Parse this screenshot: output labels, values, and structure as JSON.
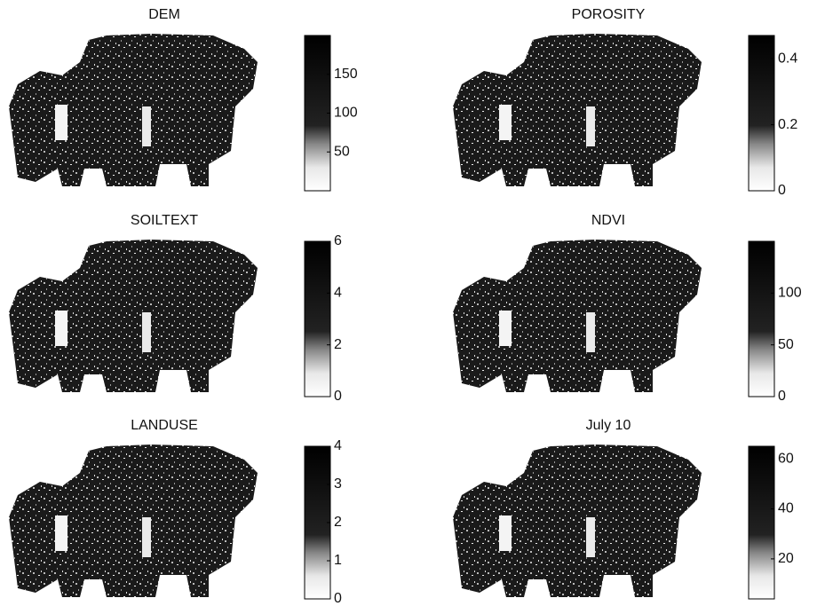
{
  "panels": [
    {
      "title": "DEM",
      "colorbar": {
        "clim": [
          0,
          200
        ],
        "ticks": [
          50,
          100,
          150
        ]
      }
    },
    {
      "title": "POROSITY",
      "colorbar": {
        "clim": [
          0,
          0.47
        ],
        "ticks": [
          0,
          0.2,
          0.4
        ]
      }
    },
    {
      "title": "SOILTEXT",
      "colorbar": {
        "clim": [
          0,
          6
        ],
        "ticks": [
          0,
          2,
          4,
          6
        ]
      }
    },
    {
      "title": "NDVI",
      "colorbar": {
        "clim": [
          0,
          150
        ],
        "ticks": [
          0,
          50,
          100
        ]
      }
    },
    {
      "title": "LANDUSE",
      "colorbar": {
        "clim": [
          0,
          4
        ],
        "ticks": [
          0,
          1,
          2,
          3,
          4
        ]
      }
    },
    {
      "title": "July 10",
      "colorbar": {
        "clim": [
          4,
          65
        ],
        "ticks": [
          20,
          40,
          60
        ]
      }
    }
  ]
}
